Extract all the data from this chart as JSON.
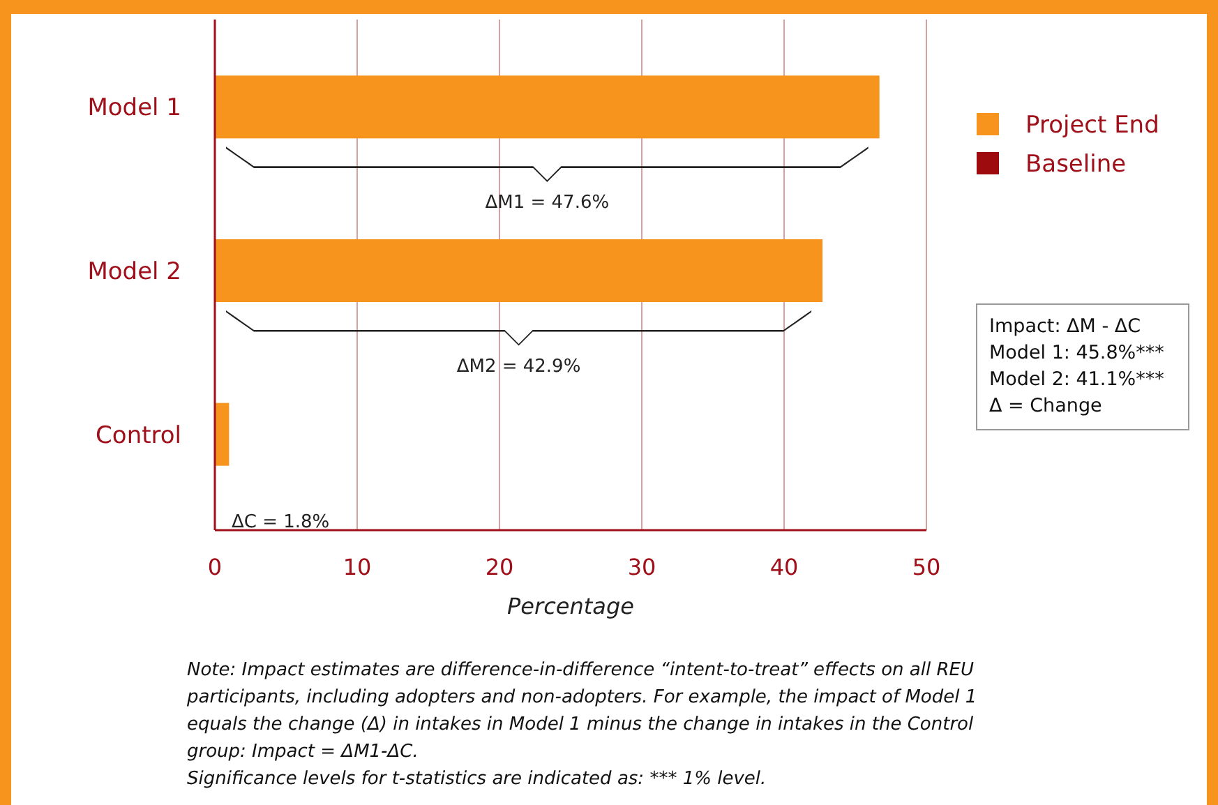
{
  "chart_data": {
    "type": "bar",
    "orientation": "horizontal",
    "xlabel": "Percentage",
    "categories": [
      "Model 1",
      "Model 2",
      "Control"
    ],
    "series": [
      {
        "name": "Project End",
        "color": "#f7941e",
        "values": [
          46.7,
          42.7,
          1.0
        ]
      },
      {
        "name": "Baseline",
        "color": "#9e0b0f",
        "values": [
          null,
          null,
          null
        ]
      }
    ],
    "xlim": [
      0,
      50
    ],
    "xticks": [
      0,
      10,
      20,
      30,
      40,
      50
    ],
    "grid": "x",
    "legend": "right",
    "annotations": [
      "ΔM1 = 47.6%",
      "ΔM2 = 42.9%",
      "ΔC = 1.8%",
      "Impact: ΔM - ΔC\nModel 1: 45.8%***\nModel 2: 41.1%***\nΔ = Change",
      "Note: Impact estimates are difference-in-difference “intent-to-treat” effects on all REU\nparticipants, including adopters and non-adopters. For example, the impact of Model 1\nequals the change (Δ) in intakes in Model 1 minus the change in intakes in the Control\ngroup: Impact = ΔM1-ΔC.\nSignificance levels for t-statistics are indicated as: *** 1% level."
    ]
  }
}
